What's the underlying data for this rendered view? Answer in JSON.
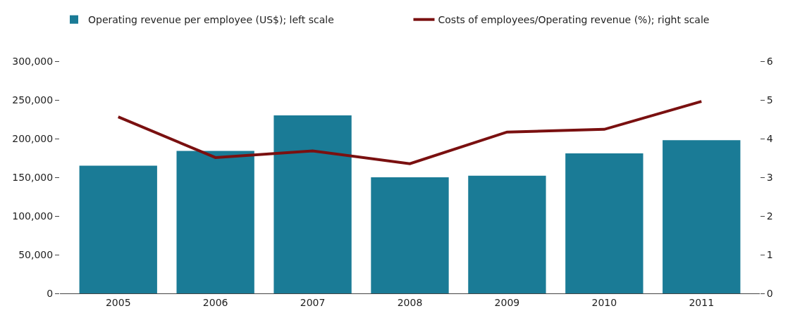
{
  "chart_data": {
    "type": "bar",
    "categories": [
      "2005",
      "2006",
      "2007",
      "2008",
      "2009",
      "2010",
      "2011"
    ],
    "series": [
      {
        "name": "Operating revenue per employee (US$); left scale",
        "color": "#1a7b96",
        "values": [
          165000,
          184000,
          230000,
          150000,
          152000,
          181000,
          198000
        ]
      },
      {
        "name": "Costs of employees/Operating revenue (%); right scale",
        "type": "line",
        "axis": "y2",
        "color": "#7a1010",
        "values": [
          4.56,
          3.51,
          3.68,
          3.35,
          4.17,
          4.24,
          4.96
        ]
      }
    ],
    "ylim": [
      0,
      300000
    ],
    "yticks": [
      {
        "value": 0,
        "label": "0"
      },
      {
        "value": 50000,
        "label": "50,000"
      },
      {
        "value": 100000,
        "label": "100,000"
      },
      {
        "value": 150000,
        "label": "150,000"
      },
      {
        "value": 200000,
        "label": "200,000"
      },
      {
        "value": 250000,
        "label": "250,000"
      },
      {
        "value": 300000,
        "label": "300,000"
      }
    ],
    "y2lim": [
      0,
      6
    ],
    "y2ticks": [
      0,
      1,
      2,
      3,
      4,
      5,
      6
    ],
    "grid": false,
    "legend": "top",
    "marker": "none",
    "line_style": "solid"
  }
}
